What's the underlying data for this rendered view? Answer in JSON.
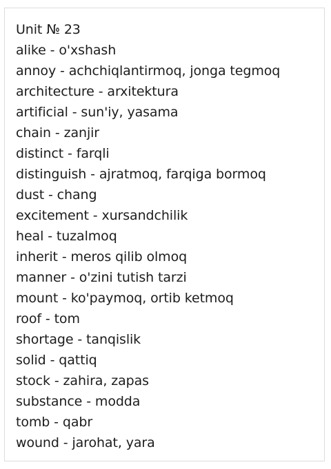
{
  "title": "Unit № 23",
  "entries": [
    "alike - o'xshash",
    "annoy - achchiqlantirmoq, jonga tegmoq",
    "architecture - arxitektura",
    "artificial - sun'iy, yasama",
    "chain - zanjir",
    "distinct - farqli",
    "distinguish - ajratmoq, farqiga bormoq",
    "dust - chang",
    "excitement - xursandchilik",
    "heal - tuzalmoq",
    "inherit - meros qilib olmoq",
    "manner - o'zini tutish tarzi",
    "mount - ko'paymoq, ortib ketmoq",
    "roof - tom",
    "shortage - tanqislik",
    "solid - qattiq",
    "stock - zahira, zapas",
    "substance - modda",
    "tomb - qabr",
    "wound - jarohat, yara"
  ]
}
